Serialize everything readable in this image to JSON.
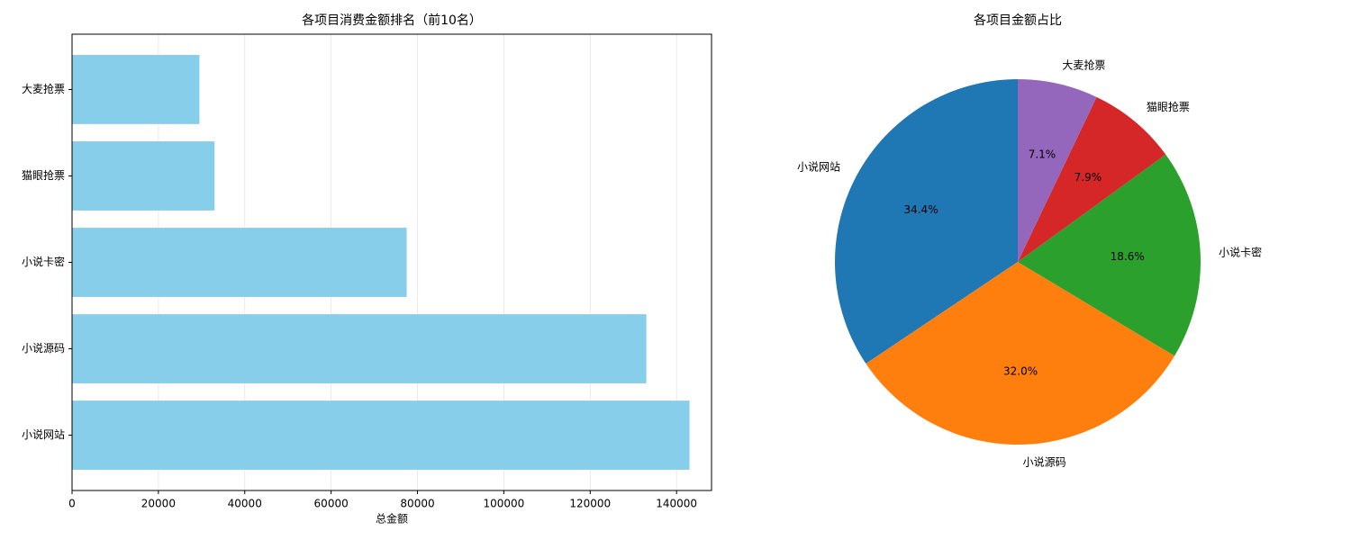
{
  "chart_data": [
    {
      "type": "barh",
      "title": "各项目消费金额排名（前10名）",
      "x_label": "总金额",
      "categories": [
        "小说网站",
        "小说源码",
        "小说卡密",
        "猫眼抢票",
        "大麦抢票"
      ],
      "values": [
        143000,
        133000,
        77500,
        33000,
        29500
      ],
      "color": "#87ceeb",
      "xlim": [
        0,
        148100
      ],
      "xticks": [
        0,
        20000,
        40000,
        60000,
        80000,
        100000,
        120000,
        140000
      ],
      "grid": true
    },
    {
      "type": "pie",
      "title": "各项目金额占比",
      "categories": [
        "小说网站",
        "小说源码",
        "小说卡密",
        "猫眼抢票",
        "大麦抢票"
      ],
      "values": [
        34.4,
        32.0,
        18.6,
        7.9,
        7.1
      ],
      "value_labels": [
        "34.4%",
        "32.0%",
        "18.6%",
        "7.9%",
        "7.1%"
      ],
      "colors": [
        "#1f77b4",
        "#ff7f0e",
        "#2ca02c",
        "#d62728",
        "#9467bd"
      ]
    }
  ]
}
